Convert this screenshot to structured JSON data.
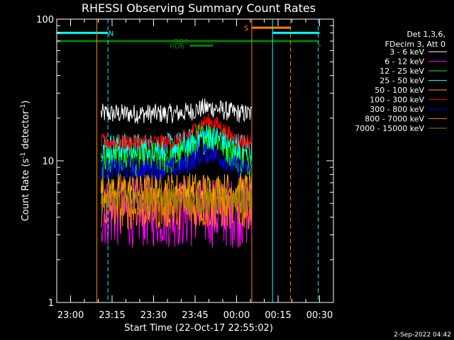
{
  "chart_data": {
    "type": "line",
    "title": "RHESSI Observing Summary Count Rates",
    "xlabel": "Start Time (22-Oct-17 22:55:02)",
    "ylabel_main": "Count Rate (s",
    "ylabel_sup1": "-1",
    "ylabel_mid": " detector",
    "ylabel_sup2": "-1",
    "ylabel_end": ")",
    "x_start_min": 0,
    "x_end_min": 100,
    "ylim": [
      1,
      100
    ],
    "yscale": "log",
    "x_ticks": [
      {
        "label": "23:00",
        "t": 5
      },
      {
        "label": "23:15",
        "t": 20
      },
      {
        "label": "23:30",
        "t": 35
      },
      {
        "label": "23:45",
        "t": 50
      },
      {
        "label": "00:00",
        "t": 65
      },
      {
        "label": "00:15",
        "t": 80
      },
      {
        "label": "00:30",
        "t": 95
      }
    ],
    "y_ticks": [
      {
        "label": "1",
        "v": 1
      },
      {
        "label": "10",
        "v": 10
      },
      {
        "label": "100",
        "v": 100
      }
    ],
    "legend_header": [
      "Det 1,3,6,",
      "FDecim 3, Att 0"
    ],
    "series": [
      {
        "name": "3 - 6 keV",
        "color": "#ffffff",
        "t0": 16,
        "t1": 70.5,
        "base": 21.5,
        "hump": 1.1,
        "noise": 0.07
      },
      {
        "name": "6 - 12 keV",
        "color": "#ff00ff",
        "t0": 16,
        "t1": 70.5,
        "base": 4.3,
        "hump": 1.0,
        "noise": 0.25
      },
      {
        "name": "12 - 25 keV",
        "color": "#00ff00",
        "t0": 16,
        "t1": 70.5,
        "base": 10.5,
        "hump": 1.45,
        "noise": 0.13
      },
      {
        "name": "25 - 50 keV",
        "color": "#00ffff",
        "t0": 16,
        "t1": 70.5,
        "base": 12.5,
        "hump": 1.2,
        "noise": 0.1
      },
      {
        "name": "50 - 100 keV",
        "color": "#ffa500",
        "t0": 16,
        "t1": 70.5,
        "base": 6.3,
        "hump": 1.0,
        "noise": 0.12
      },
      {
        "name": "100 - 300 keV",
        "color": "#ff0000",
        "t0": 16,
        "t1": 70.5,
        "base": 13.5,
        "hump": 1.4,
        "noise": 0.06
      },
      {
        "name": "300 - 800 keV",
        "color": "#0000ff",
        "t0": 16,
        "t1": 70.5,
        "base": 8.8,
        "hump": 1.3,
        "noise": 0.08
      },
      {
        "name": "800 - 7000 keV",
        "color": "#ff8000",
        "t0": 16,
        "t1": 70.5,
        "base": 4.6,
        "hump": 1.0,
        "noise": 0.15
      },
      {
        "name": "7000 - 15000 keV",
        "color": "#998000",
        "t0": 16,
        "t1": 70.5,
        "base": 5.2,
        "hump": 1.0,
        "noise": 0.1
      }
    ],
    "flags": [
      {
        "label": "N",
        "color": "#00ffff",
        "value": 80,
        "segments": [
          [
            0,
            18.5
          ],
          [
            78,
            95
          ]
        ],
        "label_t": 19.6
      },
      {
        "label": "S",
        "color": "#ff8000",
        "value": 87,
        "segments": [
          [
            70.5,
            84.5
          ]
        ],
        "label_t": 68.5
      },
      {
        "label": "RD0",
        "color": "#008000",
        "value": 70,
        "segments": [
          [
            0,
            94.5
          ]
        ],
        "label_t": 45
      },
      {
        "label": "RD6",
        "color": "#008000",
        "value": 65,
        "segments": [
          [
            48,
            56.5
          ],
          [
            94.8,
            95.3
          ]
        ],
        "label_t": 43.5
      }
    ],
    "vlines": [
      {
        "t": 0,
        "color": "#00ffff",
        "style": "solid"
      },
      {
        "t": 14.5,
        "color": "#ff8000",
        "style": "solid"
      },
      {
        "t": 18.5,
        "color": "#00ffff",
        "style": "dashed"
      },
      {
        "t": 70.5,
        "color": "#ff8000",
        "style": "solid"
      },
      {
        "t": 78,
        "color": "#00ffff",
        "style": "solid"
      },
      {
        "t": 84.5,
        "color": "#ff8000",
        "style": "dashed"
      },
      {
        "t": 94.5,
        "color": "#00ffff",
        "style": "dashed"
      }
    ],
    "grid": false,
    "legend_position": "right"
  },
  "footer_date": "2-Sep-2022 04:42"
}
